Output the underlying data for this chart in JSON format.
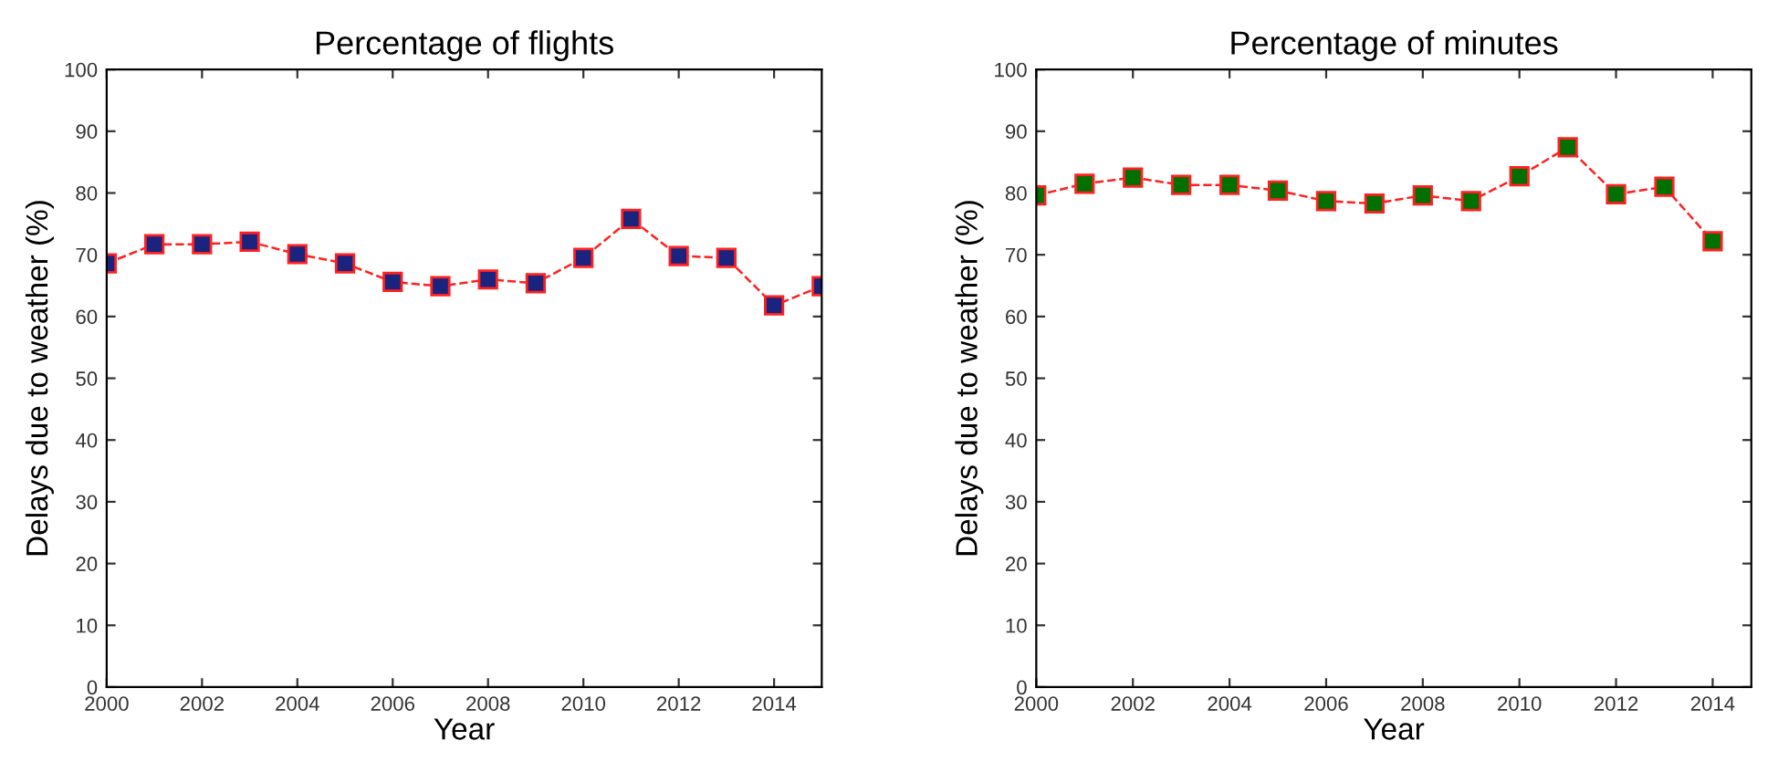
{
  "chart_data": [
    {
      "type": "line",
      "title": "Percentage of flights",
      "xlabel": "Year",
      "ylabel": "Delays due to weather (%)",
      "x": [
        2000,
        2001,
        2002,
        2003,
        2004,
        2005,
        2006,
        2007,
        2008,
        2009,
        2010,
        2011,
        2012,
        2013,
        2014,
        2015
      ],
      "series": [
        {
          "color": "#1a237e",
          "values": [
            68.6,
            71.7,
            71.7,
            72.1,
            70.1,
            68.6,
            65.6,
            64.9,
            66.0,
            65.4,
            69.5,
            75.8,
            69.8,
            69.5,
            61.8,
            64.9
          ]
        }
      ],
      "xlim": [
        2000,
        2015
      ],
      "xticks": [
        2000,
        2002,
        2004,
        2006,
        2008,
        2010,
        2012,
        2014
      ],
      "ylim": [
        0,
        100
      ],
      "yticks": [
        0,
        10,
        20,
        30,
        40,
        50,
        60,
        70,
        80,
        90,
        100
      ],
      "grid": false,
      "legend": false,
      "marker": "square",
      "line_style": "dashed"
    },
    {
      "type": "line",
      "title": "Percentage of minutes",
      "xlabel": "Year",
      "ylabel": "Delays due to weather (%)",
      "x": [
        2000,
        2001,
        2002,
        2003,
        2004,
        2005,
        2006,
        2007,
        2008,
        2009,
        2010,
        2011,
        2012,
        2013,
        2014
      ],
      "series": [
        {
          "color": "#007000",
          "values": [
            79.6,
            81.5,
            82.5,
            81.3,
            81.3,
            80.4,
            78.7,
            78.3,
            79.6,
            78.7,
            82.7,
            87.4,
            79.8,
            81.0,
            72.2
          ]
        }
      ],
      "xlim": [
        2000,
        2014.8
      ],
      "xticks": [
        2000,
        2002,
        2004,
        2006,
        2008,
        2010,
        2012,
        2014
      ],
      "ylim": [
        0,
        100
      ],
      "yticks": [
        0,
        10,
        20,
        30,
        40,
        50,
        60,
        70,
        80,
        90,
        100
      ],
      "grid": false,
      "legend": false,
      "marker": "square",
      "line_style": "dashed"
    }
  ]
}
